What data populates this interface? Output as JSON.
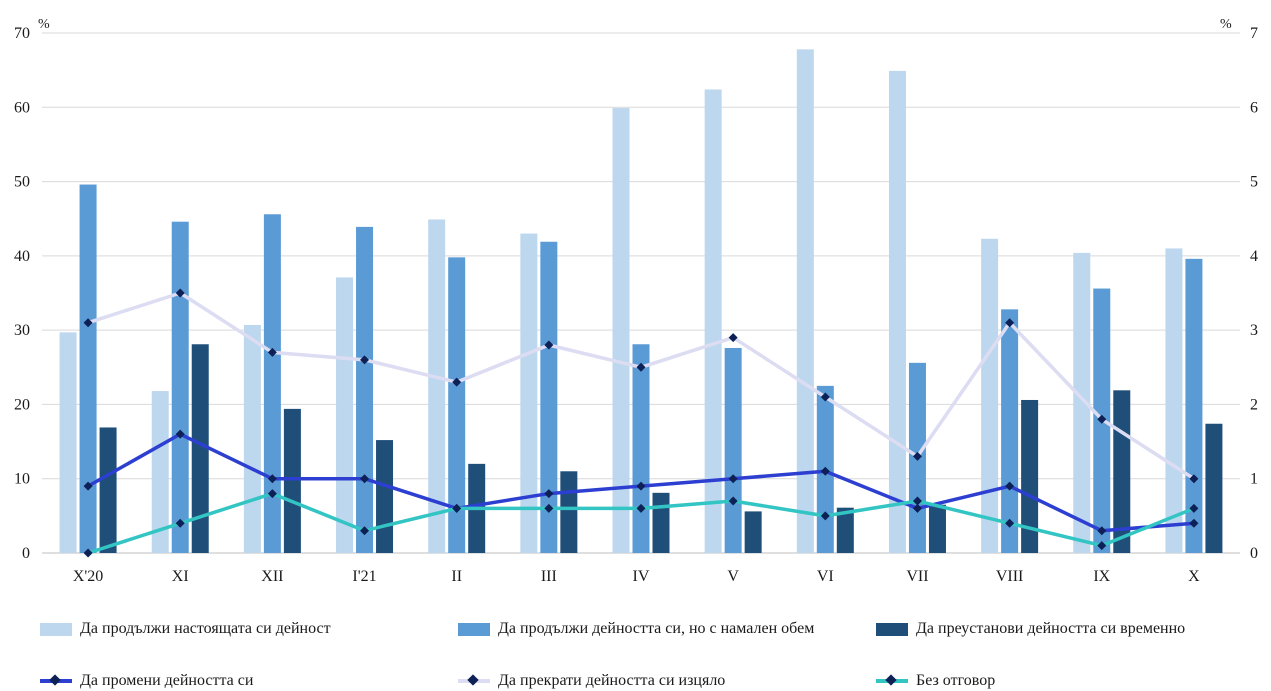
{
  "chart_data": {
    "type": "bar+line",
    "categories": [
      "X'20",
      "XI",
      "XII",
      "I'21",
      "II",
      "III",
      "IV",
      "V",
      "VI",
      "VII",
      "VIII",
      "IX",
      "X"
    ],
    "left_axis": {
      "unit": "%",
      "ylim": [
        0,
        70
      ],
      "ticks": [
        0,
        10,
        20,
        30,
        40,
        50,
        60,
        70
      ]
    },
    "right_axis": {
      "unit": "%",
      "ylim": [
        0,
        7
      ],
      "ticks": [
        0,
        1,
        2,
        3,
        4,
        5,
        6,
        7
      ]
    },
    "grid": true,
    "legend_position": "bottom",
    "bar_series": [
      {
        "name": "Да продължи настоящата си дейност",
        "color": "#bdd7ee",
        "values": [
          29.7,
          21.8,
          30.7,
          37.1,
          44.9,
          43.0,
          59.9,
          62.4,
          67.8,
          64.9,
          42.3,
          40.4,
          41.0
        ]
      },
      {
        "name": "Да продължи дейността си, но с намален обем",
        "color": "#5b9bd5",
        "values": [
          49.6,
          44.6,
          45.6,
          43.9,
          39.8,
          41.9,
          28.1,
          27.6,
          22.5,
          25.6,
          32.8,
          35.6,
          39.6
        ]
      },
      {
        "name": "Да преустанови дейността си временно",
        "color": "#1f4e79",
        "values": [
          16.9,
          28.1,
          19.4,
          15.2,
          12.0,
          11.0,
          8.1,
          5.6,
          6.1,
          6.5,
          20.6,
          21.9,
          17.4
        ]
      }
    ],
    "line_series": [
      {
        "name": "Да промени дейността си",
        "color": "#2c3fd1",
        "values": [
          0.9,
          1.6,
          1.0,
          1.0,
          0.6,
          0.8,
          0.9,
          1.0,
          1.1,
          0.6,
          0.9,
          0.3,
          0.4
        ]
      },
      {
        "name": "Да прекрати дейността си изцяло",
        "color": "#dcdcf2",
        "values": [
          3.1,
          3.5,
          2.7,
          2.6,
          2.3,
          2.8,
          2.5,
          2.9,
          2.1,
          1.3,
          3.1,
          1.8,
          1.0
        ]
      },
      {
        "name": "Без отговор",
        "color": "#33c4c4",
        "values": [
          0.0,
          0.4,
          0.8,
          0.3,
          0.6,
          0.6,
          0.6,
          0.7,
          0.5,
          0.7,
          0.4,
          0.1,
          0.6
        ]
      }
    ],
    "marker_color": "#0d2157"
  }
}
